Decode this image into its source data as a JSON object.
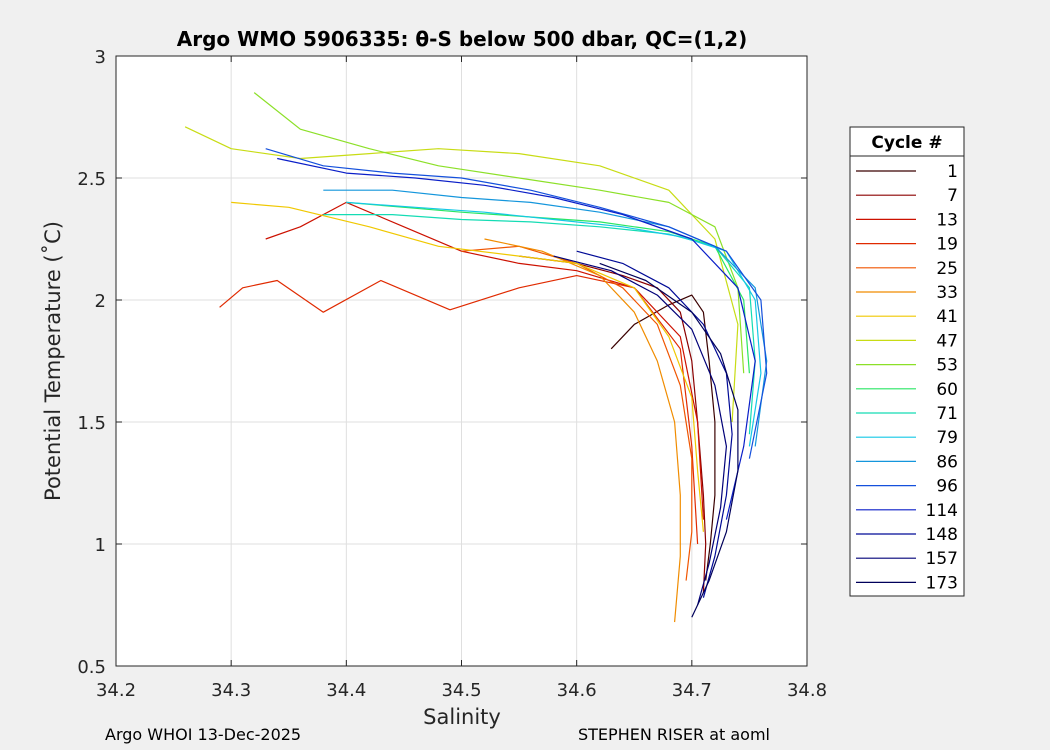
{
  "chart_data": {
    "type": "line",
    "title": "Argo WMO 5906335: θ-S below 500 dbar,  QC=(1,2)",
    "xlabel": "Salinity",
    "ylabel": "Potential Temperature (˚C)",
    "xlim": [
      34.2,
      34.8
    ],
    "ylim": [
      0.5,
      3.0
    ],
    "x_ticks": [
      "34.2",
      "34.3",
      "34.4",
      "34.5",
      "34.6",
      "34.7",
      "34.8"
    ],
    "y_ticks": [
      "0.5",
      "1",
      "1.5",
      "2",
      "2.5",
      "3"
    ],
    "grid": true,
    "legend_position": "outside-right",
    "legend_title": "Cycle #",
    "series": [
      {
        "name": "1",
        "color": "#3a0000",
        "x": [
          34.63,
          34.65,
          34.68,
          34.7,
          34.71,
          34.715,
          34.72,
          34.72,
          34.716,
          34.712
        ],
        "y": [
          1.8,
          1.9,
          1.98,
          2.02,
          1.95,
          1.75,
          1.5,
          1.2,
          1.0,
          0.85
        ]
      },
      {
        "name": "7",
        "color": "#8b0000",
        "x": [
          34.55,
          34.6,
          34.64,
          34.67,
          34.69,
          34.7,
          34.705,
          34.71,
          34.712,
          34.71
        ],
        "y": [
          2.18,
          2.15,
          2.1,
          2.05,
          1.95,
          1.75,
          1.5,
          1.2,
          1.0,
          0.8
        ]
      },
      {
        "name": "13",
        "color": "#cc1100",
        "x": [
          34.33,
          34.36,
          34.4,
          34.45,
          34.5,
          34.55,
          34.6,
          34.65,
          34.69,
          34.705,
          34.71
        ],
        "y": [
          2.25,
          2.3,
          2.4,
          2.3,
          2.2,
          2.15,
          2.12,
          2.05,
          1.85,
          1.5,
          1.1
        ]
      },
      {
        "name": "19",
        "color": "#e02a00",
        "x": [
          34.29,
          34.31,
          34.34,
          34.38,
          34.43,
          34.49,
          34.55,
          34.6,
          34.65,
          34.69,
          34.7,
          34.705
        ],
        "y": [
          1.97,
          2.05,
          2.08,
          1.95,
          2.08,
          1.96,
          2.05,
          2.1,
          2.05,
          1.8,
          1.4,
          1.0
        ]
      },
      {
        "name": "25",
        "color": "#f05500",
        "x": [
          34.5,
          34.55,
          34.6,
          34.64,
          34.67,
          34.69,
          34.7,
          34.7,
          34.695
        ],
        "y": [
          2.2,
          2.22,
          2.15,
          2.05,
          1.9,
          1.65,
          1.35,
          1.05,
          0.85
        ]
      },
      {
        "name": "33",
        "color": "#f08c00",
        "x": [
          34.52,
          34.57,
          34.62,
          34.65,
          34.67,
          34.685,
          34.69,
          34.69,
          34.685
        ],
        "y": [
          2.25,
          2.2,
          2.1,
          1.95,
          1.75,
          1.5,
          1.2,
          0.95,
          0.68
        ]
      },
      {
        "name": "41",
        "color": "#f0c800",
        "x": [
          34.3,
          34.35,
          34.42,
          34.48,
          34.55,
          34.6,
          34.65,
          34.68,
          34.7,
          34.705,
          34.71
        ],
        "y": [
          2.4,
          2.38,
          2.3,
          2.22,
          2.18,
          2.15,
          2.05,
          1.85,
          1.6,
          1.3,
          1.05
        ]
      },
      {
        "name": "47",
        "color": "#c8dc14",
        "x": [
          34.26,
          34.3,
          34.36,
          34.42,
          34.48,
          34.55,
          34.62,
          34.68,
          34.72,
          34.74,
          34.735
        ],
        "y": [
          2.71,
          2.62,
          2.58,
          2.6,
          2.62,
          2.6,
          2.55,
          2.45,
          2.25,
          1.9,
          1.5
        ]
      },
      {
        "name": "53",
        "color": "#8ce028",
        "x": [
          34.32,
          34.36,
          34.42,
          34.48,
          34.55,
          34.62,
          34.68,
          34.72,
          34.74,
          34.745
        ],
        "y": [
          2.85,
          2.7,
          2.62,
          2.55,
          2.5,
          2.45,
          2.4,
          2.3,
          2.05,
          1.7
        ]
      },
      {
        "name": "60",
        "color": "#28e664",
        "x": [
          34.4,
          34.45,
          34.5,
          34.56,
          34.62,
          34.68,
          34.72,
          34.745,
          34.75
        ],
        "y": [
          2.4,
          2.38,
          2.36,
          2.34,
          2.32,
          2.28,
          2.22,
          2.0,
          1.7
        ]
      },
      {
        "name": "71",
        "color": "#14dcb4",
        "x": [
          34.38,
          34.44,
          34.5,
          34.56,
          34.62,
          34.68,
          34.72,
          34.75,
          34.755,
          34.75
        ],
        "y": [
          2.35,
          2.35,
          2.33,
          2.32,
          2.3,
          2.27,
          2.22,
          2.05,
          1.75,
          1.45
        ]
      },
      {
        "name": "79",
        "color": "#14c8e6",
        "x": [
          34.4,
          34.46,
          34.52,
          34.58,
          34.64,
          34.69,
          34.73,
          34.755,
          34.76,
          34.75
        ],
        "y": [
          2.4,
          2.38,
          2.36,
          2.33,
          2.3,
          2.26,
          2.2,
          2.0,
          1.7,
          1.4
        ]
      },
      {
        "name": "86",
        "color": "#1496dc",
        "x": [
          34.38,
          34.44,
          34.5,
          34.56,
          34.62,
          34.68,
          34.72,
          34.755,
          34.765,
          34.755
        ],
        "y": [
          2.45,
          2.45,
          2.42,
          2.4,
          2.36,
          2.3,
          2.22,
          2.05,
          1.75,
          1.4
        ]
      },
      {
        "name": "96",
        "color": "#1450dc",
        "x": [
          34.33,
          34.38,
          34.44,
          34.5,
          34.56,
          34.62,
          34.68,
          34.73,
          34.76,
          34.765,
          34.75
        ],
        "y": [
          2.62,
          2.55,
          2.52,
          2.5,
          2.45,
          2.38,
          2.3,
          2.2,
          2.0,
          1.7,
          1.35
        ]
      },
      {
        "name": "114",
        "color": "#0a1ec8",
        "x": [
          34.34,
          34.4,
          34.46,
          34.52,
          34.58,
          34.64,
          34.7,
          34.74,
          34.755,
          34.745,
          34.73
        ],
        "y": [
          2.58,
          2.52,
          2.5,
          2.47,
          2.42,
          2.35,
          2.25,
          2.05,
          1.75,
          1.4,
          1.1
        ]
      },
      {
        "name": "148",
        "color": "#000a96",
        "x": [
          34.6,
          34.64,
          34.68,
          34.71,
          34.73,
          34.735,
          34.73,
          34.72,
          34.71
        ],
        "y": [
          2.2,
          2.15,
          2.05,
          1.9,
          1.7,
          1.45,
          1.2,
          0.95,
          0.78
        ]
      },
      {
        "name": "157",
        "color": "#000078",
        "x": [
          34.58,
          34.63,
          34.67,
          34.7,
          34.72,
          34.73,
          34.725,
          34.715,
          34.705
        ],
        "y": [
          2.18,
          2.12,
          2.02,
          1.88,
          1.65,
          1.4,
          1.15,
          0.92,
          0.75
        ]
      },
      {
        "name": "173",
        "color": "#00005a",
        "x": [
          34.62,
          34.66,
          34.7,
          34.725,
          34.74,
          34.74,
          34.73,
          34.715,
          34.7
        ],
        "y": [
          2.15,
          2.08,
          1.95,
          1.78,
          1.55,
          1.3,
          1.05,
          0.85,
          0.7
        ]
      }
    ]
  },
  "footer": {
    "left": "Argo WHOI 13-Dec-2025",
    "right": "STEPHEN RISER at aoml"
  }
}
